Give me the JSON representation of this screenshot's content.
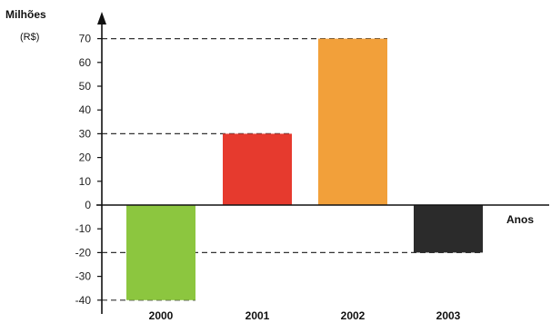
{
  "chart_data": {
    "type": "bar",
    "title": "",
    "ylabel": "Milhões",
    "yunit": "(R$)",
    "xlabel": "Anos",
    "categories": [
      "2000",
      "2001",
      "2002",
      "2003"
    ],
    "values": [
      -40,
      30,
      70,
      -20
    ],
    "colors": [
      "#8cc63f",
      "#e63a2e",
      "#f2a03a",
      "#2b2b2b"
    ],
    "yticks": [
      -40,
      -30,
      -20,
      -10,
      0,
      10,
      20,
      30,
      40,
      50,
      60,
      70
    ],
    "ylim": [
      -40,
      70
    ],
    "grid": false,
    "reference_lines": "dashed lines from y-axis to each bar end"
  }
}
